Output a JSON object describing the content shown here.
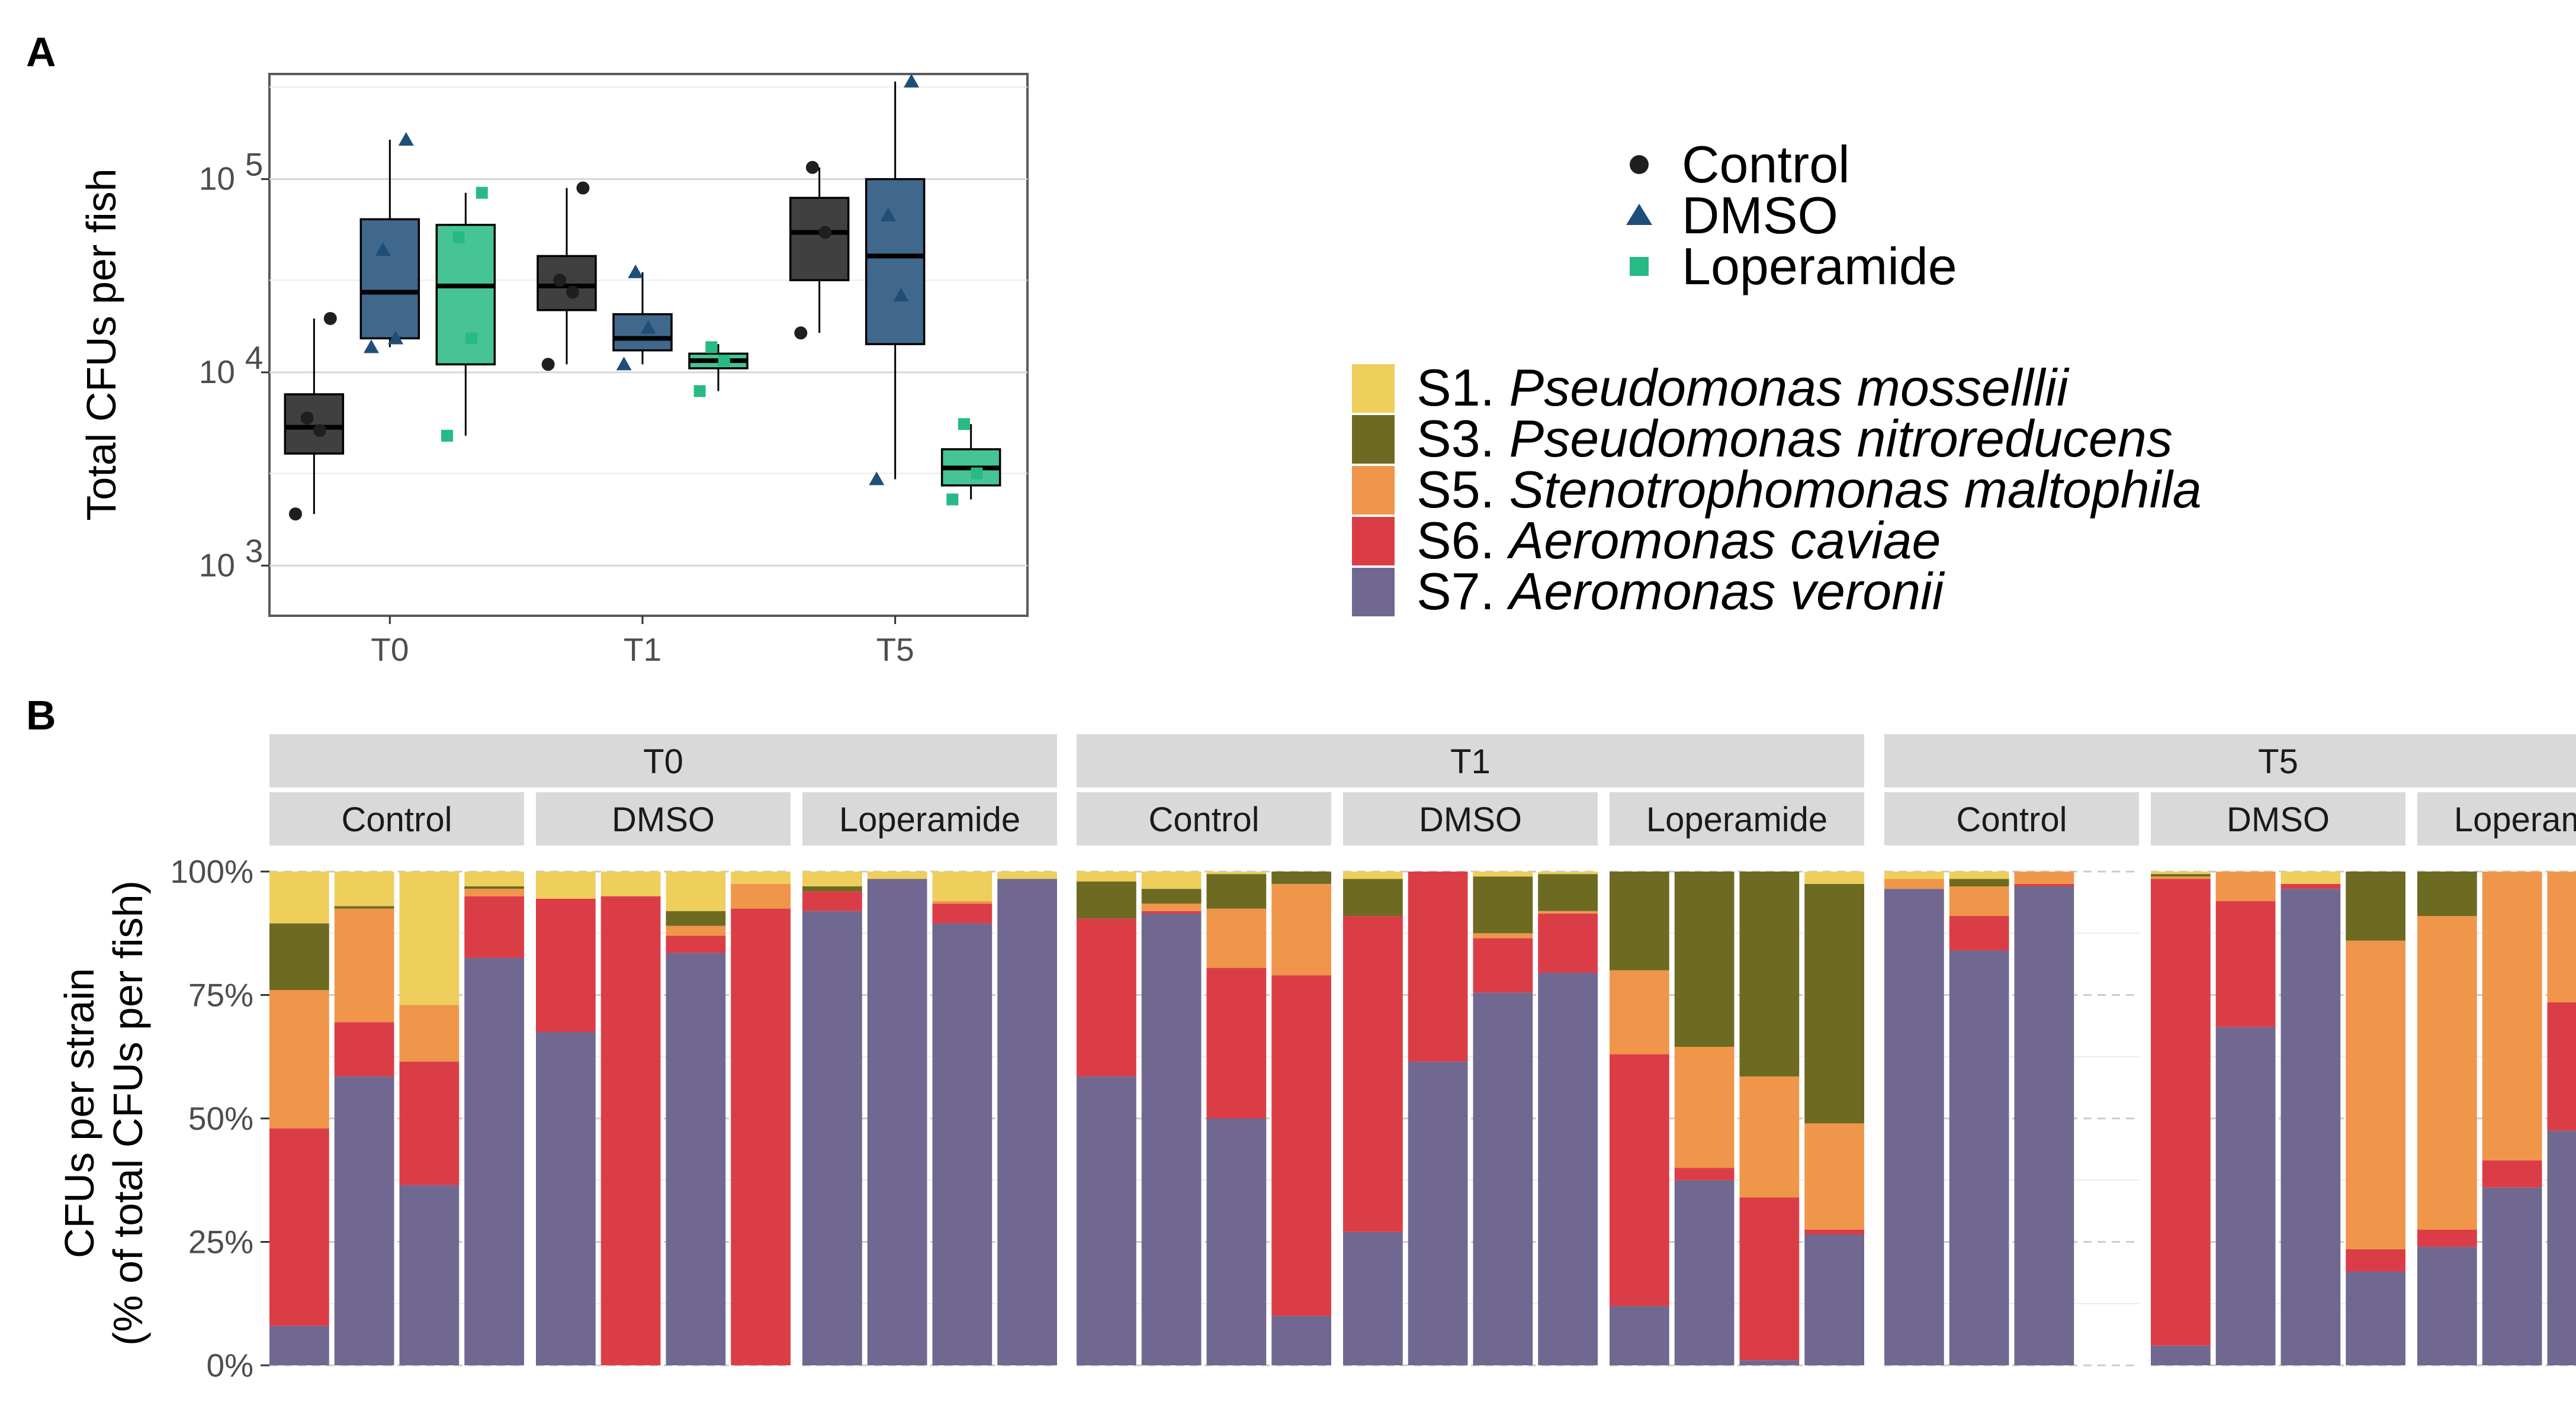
{
  "panels": {
    "a_tag": "A",
    "b_tag": "B"
  },
  "colors": {
    "Control": "#1f1f1f",
    "DMSO": "#1f4e79",
    "Loperamide": "#27ba84",
    "S1": "#eecf5c",
    "S3": "#6d6a22",
    "S5": "#ef964a",
    "S6": "#db3d47",
    "S7": "#706890"
  },
  "chart_data": [
    {
      "type": "box",
      "ylabel": "Total CFUs per fish",
      "yscale": "log10",
      "ylim": [
        550,
        350000
      ],
      "y_ticks": [
        {
          "base": "10",
          "exp": "3",
          "value": 1000
        },
        {
          "base": "10",
          "exp": "4",
          "value": 10000
        },
        {
          "base": "10",
          "exp": "5",
          "value": 100000
        }
      ],
      "categories": [
        "T0",
        "T1",
        "T5"
      ],
      "series": [
        {
          "name": "Control",
          "shape": "circle",
          "boxes": [
            {
              "min": 1850,
              "q1": 3800,
              "median": 5200,
              "q3": 7700,
              "max": 19000,
              "points": [
                1850,
                5000,
                5800,
                19000
              ]
            },
            {
              "min": 11000,
              "q1": 21000,
              "median": 28000,
              "q3": 40000,
              "max": 90000,
              "points": [
                11000,
                26000,
                30000,
                90000
              ]
            },
            {
              "min": 16000,
              "q1": 30000,
              "median": 53000,
              "q3": 80000,
              "max": 115000,
              "points": [
                16000,
                53000,
                115000
              ]
            }
          ]
        },
        {
          "name": "DMSO",
          "shape": "triangle",
          "boxes": [
            {
              "min": 13500,
              "q1": 15000,
              "median": 26000,
              "q3": 62000,
              "max": 160000,
              "points": [
                13500,
                15000,
                43000,
                160000
              ]
            },
            {
              "min": 11000,
              "q1": 13000,
              "median": 15000,
              "q3": 20000,
              "max": 33000,
              "points": [
                11000,
                17000,
                33000
              ]
            },
            {
              "min": 2800,
              "q1": 14000,
              "median": 40000,
              "q3": 100000,
              "max": 320000,
              "points": [
                2800,
                25000,
                65000,
                320000
              ]
            }
          ]
        },
        {
          "name": "Loperamide",
          "shape": "square",
          "boxes": [
            {
              "min": 4700,
              "q1": 11000,
              "median": 28000,
              "q3": 58000,
              "max": 85000,
              "points": [
                4700,
                15000,
                50000,
                85000
              ]
            },
            {
              "min": 8000,
              "q1": 10500,
              "median": 11500,
              "q3": 12500,
              "max": 14000,
              "points": [
                8000,
                11500,
                13500
              ]
            },
            {
              "min": 2200,
              "q1": 2600,
              "median": 3200,
              "q3": 4000,
              "max": 5400,
              "points": [
                2200,
                3000,
                5400
              ]
            }
          ]
        }
      ]
    },
    {
      "type": "bar",
      "stacked": true,
      "ylabel_line1": "CFUs per strain",
      "ylabel_line2": "(% of total CFUs per fish)",
      "y_ticks": [
        "0%",
        "25%",
        "50%",
        "75%",
        "100%"
      ],
      "ylim": [
        0,
        100
      ],
      "stack_order_bottom_to_top": [
        "S7",
        "S6",
        "S5",
        "S3",
        "S1"
      ],
      "legend": [
        {
          "key": "S1",
          "label": "S1.",
          "species": "Pseudomonas mosselllii"
        },
        {
          "key": "S3",
          "label": "S3.",
          "species": "Pseudomonas nitroreducens"
        },
        {
          "key": "S5",
          "label": "S5.",
          "species": "Stenotrophomonas maltophila"
        },
        {
          "key": "S6",
          "label": "S6.",
          "species": "Aeromonas caviae"
        },
        {
          "key": "S7",
          "label": "S7.",
          "species": "Aeromonas veronii"
        }
      ],
      "timepoints": [
        {
          "name": "T0",
          "groups": [
            {
              "name": "Control",
              "fish": [
                {
                  "S7": 8,
                  "S6": 40,
                  "S5": 28,
                  "S3": 13.5,
                  "S1": 10.5
                },
                {
                  "S7": 58.5,
                  "S6": 11,
                  "S5": 23,
                  "S3": 0.5,
                  "S1": 7
                },
                {
                  "S7": 36.5,
                  "S6": 25,
                  "S5": 11.5,
                  "S3": 0,
                  "S1": 27
                },
                {
                  "S7": 82.5,
                  "S6": 12.5,
                  "S5": 1.5,
                  "S3": 0.5,
                  "S1": 3
                }
              ]
            },
            {
              "name": "DMSO",
              "fish": [
                {
                  "S7": 67.5,
                  "S6": 27,
                  "S5": 0,
                  "S3": 0,
                  "S1": 5.5
                },
                {
                  "S7": 0,
                  "S6": 95,
                  "S5": 0,
                  "S3": 0,
                  "S1": 5
                },
                {
                  "S7": 83.5,
                  "S6": 3.5,
                  "S5": 2,
                  "S3": 3,
                  "S1": 8
                },
                {
                  "S7": 0,
                  "S6": 92.5,
                  "S5": 5,
                  "S3": 0,
                  "S1": 2.5
                }
              ]
            },
            {
              "name": "Loperamide",
              "fish": [
                {
                  "S7": 92,
                  "S6": 4,
                  "S5": 0,
                  "S3": 1,
                  "S1": 3
                },
                {
                  "S7": 98.5,
                  "S6": 0,
                  "S5": 0,
                  "S3": 0,
                  "S1": 1.5
                },
                {
                  "S7": 89.5,
                  "S6": 4,
                  "S5": 0.5,
                  "S3": 0,
                  "S1": 6
                },
                {
                  "S7": 98.5,
                  "S6": 0,
                  "S5": 0,
                  "S3": 0,
                  "S1": 1.5
                }
              ]
            }
          ]
        },
        {
          "name": "T1",
          "groups": [
            {
              "name": "Control",
              "fish": [
                {
                  "S7": 58.5,
                  "S6": 32,
                  "S5": 0,
                  "S3": 7.5,
                  "S1": 2
                },
                {
                  "S7": 91.5,
                  "S6": 0.5,
                  "S5": 1.5,
                  "S3": 3,
                  "S1": 3.5
                },
                {
                  "S7": 50,
                  "S6": 30.5,
                  "S5": 12,
                  "S3": 7,
                  "S1": 0.5
                },
                {
                  "S7": 10,
                  "S6": 69,
                  "S5": 18.5,
                  "S3": 2.5,
                  "S1": 0
                }
              ]
            },
            {
              "name": "DMSO",
              "fish": [
                {
                  "S7": 27,
                  "S6": 64,
                  "S5": 0,
                  "S3": 7.5,
                  "S1": 1.5
                },
                {
                  "S7": 61.5,
                  "S6": 38.5,
                  "S5": 0,
                  "S3": 0,
                  "S1": 0
                },
                {
                  "S7": 75.5,
                  "S6": 11,
                  "S5": 1,
                  "S3": 11.5,
                  "S1": 1
                },
                {
                  "S7": 79.5,
                  "S6": 12,
                  "S5": 0.5,
                  "S3": 7.5,
                  "S1": 0.5
                }
              ]
            },
            {
              "name": "Loperamide",
              "fish": [
                {
                  "S7": 12,
                  "S6": 51,
                  "S5": 17,
                  "S3": 20,
                  "S1": 0
                },
                {
                  "S7": 37.5,
                  "S6": 2.5,
                  "S5": 24.5,
                  "S3": 35.5,
                  "S1": 0
                },
                {
                  "S7": 1,
                  "S6": 33,
                  "S5": 24.5,
                  "S3": 41.5,
                  "S1": 0
                },
                {
                  "S7": 26.5,
                  "S6": 1,
                  "S5": 21.5,
                  "S3": 48.5,
                  "S1": 2.5
                }
              ]
            }
          ]
        },
        {
          "name": "T5",
          "groups": [
            {
              "name": "Control",
              "fish": [
                {
                  "S7": 96.5,
                  "S6": 0,
                  "S5": 2,
                  "S3": 0,
                  "S1": 1.5
                },
                {
                  "S7": 84,
                  "S6": 7,
                  "S5": 6,
                  "S3": 1.5,
                  "S1": 1.5
                },
                {
                  "S7": 97,
                  "S6": 0.5,
                  "S5": 2.5,
                  "S3": 0,
                  "S1": 0
                }
              ]
            },
            {
              "name": "DMSO",
              "fish": [
                {
                  "S7": 4,
                  "S6": 94.5,
                  "S5": 0.5,
                  "S3": 0.5,
                  "S1": 0.5
                },
                {
                  "S7": 68.5,
                  "S6": 25.5,
                  "S5": 6,
                  "S3": 0,
                  "S1": 0
                },
                {
                  "S7": 96.5,
                  "S6": 1,
                  "S5": 0,
                  "S3": 0,
                  "S1": 2.5
                },
                {
                  "S7": 19,
                  "S6": 4.5,
                  "S5": 62.5,
                  "S3": 14,
                  "S1": 0
                }
              ]
            },
            {
              "name": "Loperamide",
              "fish": [
                {
                  "S7": 24,
                  "S6": 3.5,
                  "S5": 63.5,
                  "S3": 9,
                  "S1": 0
                },
                {
                  "S7": 36,
                  "S6": 5.5,
                  "S5": 58.5,
                  "S3": 0,
                  "S1": 0
                },
                {
                  "S7": 47.5,
                  "S6": 26,
                  "S5": 26.5,
                  "S3": 0,
                  "S1": 0
                }
              ]
            }
          ]
        }
      ]
    }
  ]
}
